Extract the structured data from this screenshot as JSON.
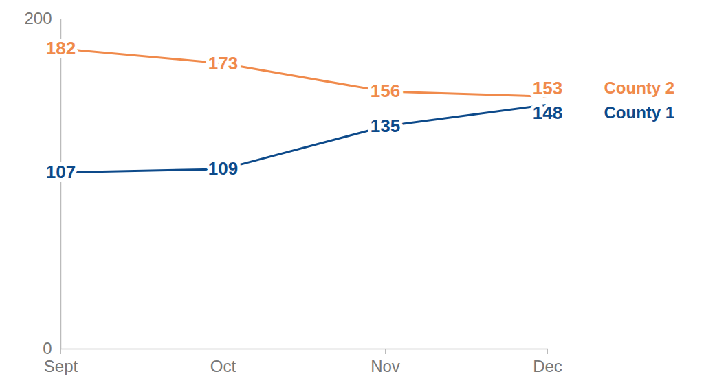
{
  "chart_data": {
    "type": "line",
    "categories": [
      "Sept",
      "Oct",
      "Nov",
      "Dec"
    ],
    "series": [
      {
        "name": "County 2",
        "color": "#f08a4b",
        "values": [
          182,
          173,
          156,
          153
        ]
      },
      {
        "name": "County 1",
        "color": "#0d4a8a",
        "values": [
          107,
          109,
          135,
          148
        ]
      }
    ],
    "ylim": [
      0,
      200
    ],
    "yticks": [
      0,
      200
    ],
    "data_labels": true,
    "legend": "right"
  }
}
